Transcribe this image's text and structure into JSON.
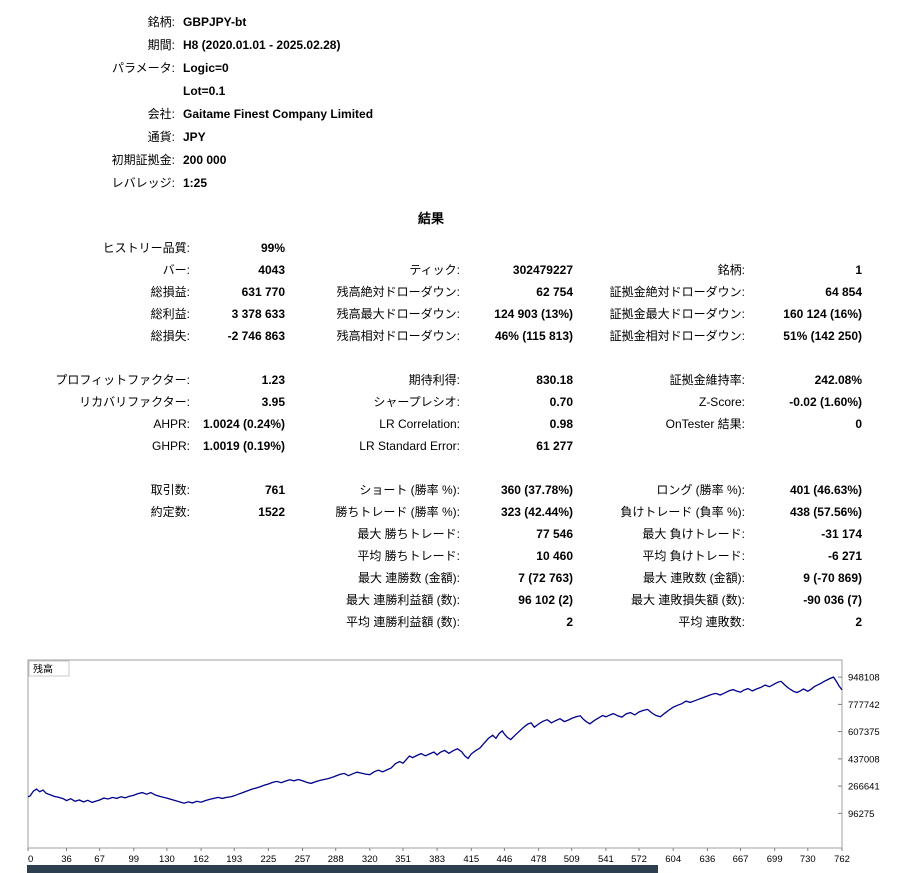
{
  "header": {
    "rows": [
      {
        "label": "銘柄:",
        "value": "GBPJPY-bt"
      },
      {
        "label": "期間:",
        "value": "H8 (2020.01.01 - 2025.02.28)"
      },
      {
        "label": "パラメータ:",
        "value": "Logic=0"
      },
      {
        "label": "",
        "value": "Lot=0.1"
      },
      {
        "label": "会社:",
        "value": "Gaitame Finest Company Limited"
      },
      {
        "label": "通貨:",
        "value": "JPY"
      },
      {
        "label": "初期証拠金:",
        "value": "200 000"
      },
      {
        "label": "レバレッジ:",
        "value": "1:25"
      }
    ]
  },
  "results": {
    "title": "結果",
    "rows": [
      {
        "cells": [
          {
            "label": "ヒストリー品質:",
            "value": "99%"
          },
          null,
          null
        ]
      },
      {
        "cells": [
          {
            "label": "バー:",
            "value": "4043"
          },
          {
            "label": "ティック:",
            "value": "302479227"
          },
          {
            "label": "銘柄:",
            "value": "1"
          }
        ]
      },
      {
        "cells": [
          {
            "label": "総損益:",
            "value": "631 770"
          },
          {
            "label": "残高絶対ドローダウン:",
            "value": "62 754"
          },
          {
            "label": "証拠金絶対ドローダウン:",
            "value": "64 854"
          }
        ]
      },
      {
        "cells": [
          {
            "label": "総利益:",
            "value": "3 378 633"
          },
          {
            "label": "残高最大ドローダウン:",
            "value": "124 903 (13%)"
          },
          {
            "label": "証拠金最大ドローダウン:",
            "value": "160 124 (16%)"
          }
        ]
      },
      {
        "cells": [
          {
            "label": "総損失:",
            "value": "-2 746 863"
          },
          {
            "label": "残高相対ドローダウン:",
            "value": "46% (115 813)"
          },
          {
            "label": "証拠金相対ドローダウン:",
            "value": "51% (142 250)"
          }
        ]
      },
      {
        "spacer": true
      },
      {
        "cells": [
          {
            "label": "プロフィットファクター:",
            "value": "1.23"
          },
          {
            "label": "期待利得:",
            "value": "830.18"
          },
          {
            "label": "証拠金維持率:",
            "value": "242.08%"
          }
        ]
      },
      {
        "cells": [
          {
            "label": "リカバリファクター:",
            "value": "3.95"
          },
          {
            "label": "シャープレシオ:",
            "value": "0.70"
          },
          {
            "label": "Z-Score:",
            "value": "-0.02 (1.60%)"
          }
        ]
      },
      {
        "cells": [
          {
            "label": "AHPR:",
            "value": "1.0024 (0.24%)"
          },
          {
            "label": "LR Correlation:",
            "value": "0.98"
          },
          {
            "label": "OnTester 結果:",
            "value": "0"
          }
        ]
      },
      {
        "cells": [
          {
            "label": "GHPR:",
            "value": "1.0019 (0.19%)"
          },
          {
            "label": "LR Standard Error:",
            "value": "61 277"
          },
          null
        ]
      },
      {
        "spacer": true
      },
      {
        "cells": [
          {
            "label": "取引数:",
            "value": "761"
          },
          {
            "label": "ショート (勝率 %):",
            "value": "360 (37.78%)"
          },
          {
            "label": "ロング (勝率 %):",
            "value": "401 (46.63%)"
          }
        ]
      },
      {
        "cells": [
          {
            "label": "約定数:",
            "value": "1522"
          },
          {
            "label": "勝ちトレード (勝率 %):",
            "value": "323 (42.44%)"
          },
          {
            "label": "負けトレード (負率 %):",
            "value": "438 (57.56%)"
          }
        ]
      },
      {
        "cells": [
          null,
          {
            "label": "最大 勝ちトレード:",
            "value": "77 546"
          },
          {
            "label": "最大 負けトレード:",
            "value": "-31 174"
          }
        ]
      },
      {
        "cells": [
          null,
          {
            "label": "平均 勝ちトレード:",
            "value": "10 460"
          },
          {
            "label": "平均 負けトレード:",
            "value": "-6 271"
          }
        ]
      },
      {
        "cells": [
          null,
          {
            "label": "最大 連勝数 (金額):",
            "value": "7 (72 763)"
          },
          {
            "label": "最大 連敗数 (金額):",
            "value": "9 (-70 869)"
          }
        ]
      },
      {
        "cells": [
          null,
          {
            "label": "最大 連勝利益額 (数):",
            "value": "96 102 (2)"
          },
          {
            "label": "最大 連敗損失額 (数):",
            "value": "-90 036 (7)"
          }
        ]
      },
      {
        "cells": [
          null,
          {
            "label": "平均 連勝利益額 (数):",
            "value": "2"
          },
          {
            "label": "平均 連敗数:",
            "value": "2"
          }
        ]
      }
    ]
  },
  "chart_data": {
    "type": "line",
    "title": "残高",
    "series_label": "残高",
    "line_color": "#00008B",
    "border_color": "#a0a0a0",
    "scrollbar_color": "#2e3f4f",
    "scrollbar_fraction": 0.775,
    "x_range": [
      0,
      762
    ],
    "y_range": [
      -120000,
      1055000
    ],
    "x_ticks": [
      0,
      36,
      67,
      99,
      130,
      162,
      193,
      225,
      257,
      288,
      320,
      351,
      383,
      415,
      446,
      478,
      509,
      541,
      572,
      604,
      636,
      667,
      699,
      730,
      762
    ],
    "y_ticks": [
      948108,
      777742,
      607375,
      437008,
      266641,
      96275
    ],
    "points": [
      [
        0,
        200000
      ],
      [
        2,
        205000
      ],
      [
        5,
        235000
      ],
      [
        8,
        248000
      ],
      [
        11,
        232000
      ],
      [
        14,
        242000
      ],
      [
        17,
        222000
      ],
      [
        21,
        212000
      ],
      [
        25,
        202000
      ],
      [
        29,
        196000
      ],
      [
        33,
        188000
      ],
      [
        36,
        176000
      ],
      [
        40,
        188000
      ],
      [
        44,
        172000
      ],
      [
        48,
        180000
      ],
      [
        52,
        168000
      ],
      [
        56,
        178000
      ],
      [
        60,
        165000
      ],
      [
        64,
        174000
      ],
      [
        67,
        180000
      ],
      [
        71,
        192000
      ],
      [
        75,
        186000
      ],
      [
        79,
        196000
      ],
      [
        83,
        190000
      ],
      [
        87,
        200000
      ],
      [
        91,
        194000
      ],
      [
        95,
        204000
      ],
      [
        99,
        210000
      ],
      [
        103,
        220000
      ],
      [
        107,
        226000
      ],
      [
        111,
        216000
      ],
      [
        115,
        226000
      ],
      [
        119,
        212000
      ],
      [
        123,
        204000
      ],
      [
        127,
        196000
      ],
      [
        130,
        192000
      ],
      [
        134,
        184000
      ],
      [
        138,
        176000
      ],
      [
        142,
        168000
      ],
      [
        146,
        160000
      ],
      [
        150,
        168000
      ],
      [
        154,
        162000
      ],
      [
        158,
        172000
      ],
      [
        162,
        166000
      ],
      [
        166,
        176000
      ],
      [
        170,
        184000
      ],
      [
        174,
        190000
      ],
      [
        178,
        196000
      ],
      [
        182,
        190000
      ],
      [
        186,
        196000
      ],
      [
        190,
        200000
      ],
      [
        193,
        206000
      ],
      [
        197,
        216000
      ],
      [
        201,
        226000
      ],
      [
        205,
        236000
      ],
      [
        209,
        246000
      ],
      [
        213,
        254000
      ],
      [
        217,
        262000
      ],
      [
        221,
        272000
      ],
      [
        225,
        280000
      ],
      [
        229,
        290000
      ],
      [
        233,
        296000
      ],
      [
        237,
        288000
      ],
      [
        241,
        298000
      ],
      [
        245,
        306000
      ],
      [
        249,
        300000
      ],
      [
        253,
        308000
      ],
      [
        257,
        300000
      ],
      [
        261,
        290000
      ],
      [
        265,
        284000
      ],
      [
        269,
        294000
      ],
      [
        273,
        302000
      ],
      [
        277,
        308000
      ],
      [
        281,
        314000
      ],
      [
        285,
        322000
      ],
      [
        288,
        330000
      ],
      [
        292,
        340000
      ],
      [
        296,
        346000
      ],
      [
        300,
        332000
      ],
      [
        304,
        344000
      ],
      [
        308,
        354000
      ],
      [
        312,
        348000
      ],
      [
        316,
        342000
      ],
      [
        320,
        338000
      ],
      [
        324,
        356000
      ],
      [
        328,
        366000
      ],
      [
        332,
        356000
      ],
      [
        336,
        368000
      ],
      [
        340,
        380000
      ],
      [
        344,
        408000
      ],
      [
        348,
        420000
      ],
      [
        351,
        410000
      ],
      [
        354,
        432000
      ],
      [
        357,
        455000
      ],
      [
        360,
        445000
      ],
      [
        364,
        458000
      ],
      [
        368,
        470000
      ],
      [
        372,
        456000
      ],
      [
        376,
        468000
      ],
      [
        380,
        480000
      ],
      [
        383,
        462000
      ],
      [
        386,
        478000
      ],
      [
        390,
        490000
      ],
      [
        394,
        472000
      ],
      [
        398,
        488000
      ],
      [
        402,
        500000
      ],
      [
        406,
        482000
      ],
      [
        409,
        455000
      ],
      [
        412,
        440000
      ],
      [
        415,
        468000
      ],
      [
        419,
        488000
      ],
      [
        423,
        505000
      ],
      [
        427,
        535000
      ],
      [
        431,
        565000
      ],
      [
        435,
        585000
      ],
      [
        438,
        565000
      ],
      [
        441,
        595000
      ],
      [
        444,
        612000
      ],
      [
        446,
        592000
      ],
      [
        449,
        570000
      ],
      [
        452,
        558000
      ],
      [
        456,
        585000
      ],
      [
        460,
        610000
      ],
      [
        464,
        635000
      ],
      [
        468,
        655000
      ],
      [
        471,
        662000
      ],
      [
        474,
        635000
      ],
      [
        478,
        655000
      ],
      [
        482,
        672000
      ],
      [
        486,
        682000
      ],
      [
        490,
        662000
      ],
      [
        494,
        676000
      ],
      [
        498,
        688000
      ],
      [
        502,
        670000
      ],
      [
        506,
        680000
      ],
      [
        509,
        690000
      ],
      [
        513,
        700000
      ],
      [
        517,
        706000
      ],
      [
        520,
        684000
      ],
      [
        523,
        668000
      ],
      [
        526,
        656000
      ],
      [
        530,
        676000
      ],
      [
        534,
        692000
      ],
      [
        538,
        708000
      ],
      [
        541,
        700000
      ],
      [
        545,
        712000
      ],
      [
        548,
        720000
      ],
      [
        552,
        706000
      ],
      [
        556,
        698000
      ],
      [
        560,
        718000
      ],
      [
        564,
        726000
      ],
      [
        568,
        712000
      ],
      [
        572,
        730000
      ],
      [
        576,
        740000
      ],
      [
        580,
        746000
      ],
      [
        584,
        724000
      ],
      [
        588,
        708000
      ],
      [
        592,
        700000
      ],
      [
        596,
        722000
      ],
      [
        600,
        742000
      ],
      [
        604,
        760000
      ],
      [
        608,
        772000
      ],
      [
        612,
        782000
      ],
      [
        616,
        798000
      ],
      [
        620,
        790000
      ],
      [
        624,
        800000
      ],
      [
        628,
        810000
      ],
      [
        632,
        820000
      ],
      [
        636,
        830000
      ],
      [
        640,
        840000
      ],
      [
        644,
        846000
      ],
      [
        648,
        836000
      ],
      [
        652,
        848000
      ],
      [
        656,
        862000
      ],
      [
        660,
        870000
      ],
      [
        664,
        860000
      ],
      [
        667,
        854000
      ],
      [
        670,
        866000
      ],
      [
        674,
        876000
      ],
      [
        678,
        862000
      ],
      [
        682,
        874000
      ],
      [
        686,
        884000
      ],
      [
        690,
        898000
      ],
      [
        694,
        888000
      ],
      [
        697,
        898000
      ],
      [
        699,
        906000
      ],
      [
        702,
        916000
      ],
      [
        705,
        922000
      ],
      [
        708,
        902000
      ],
      [
        711,
        884000
      ],
      [
        714,
        870000
      ],
      [
        717,
        858000
      ],
      [
        720,
        852000
      ],
      [
        723,
        862000
      ],
      [
        726,
        874000
      ],
      [
        730,
        860000
      ],
      [
        733,
        872000
      ],
      [
        736,
        888000
      ],
      [
        739,
        898000
      ],
      [
        742,
        908000
      ],
      [
        745,
        920000
      ],
      [
        748,
        930000
      ],
      [
        751,
        940000
      ],
      [
        754,
        948108
      ],
      [
        757,
        918000
      ],
      [
        759,
        895000
      ],
      [
        762,
        868000
      ]
    ]
  }
}
